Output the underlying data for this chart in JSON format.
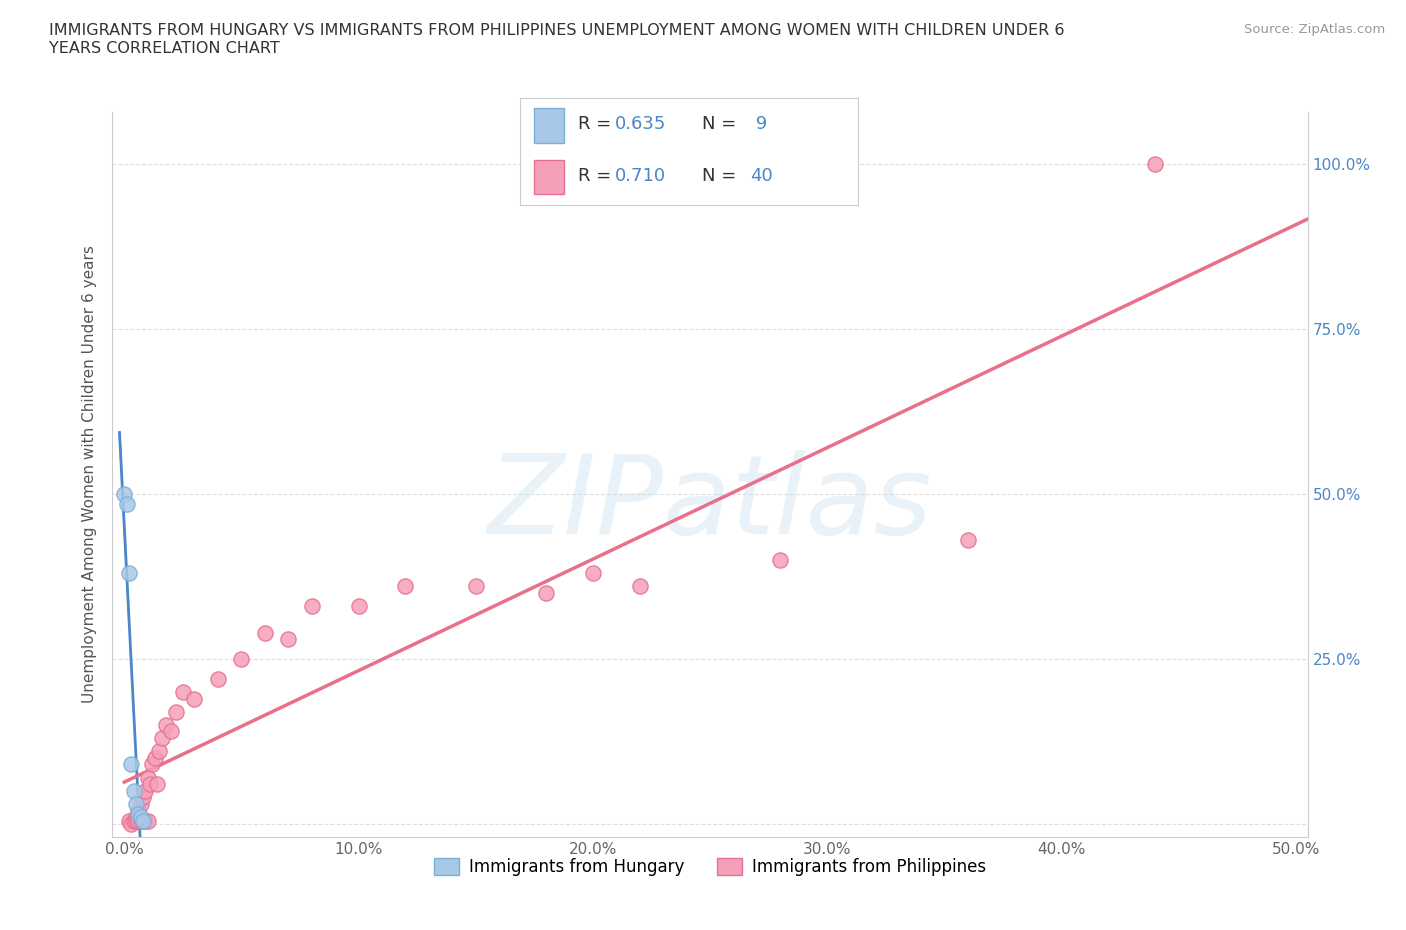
{
  "title": "IMMIGRANTS FROM HUNGARY VS IMMIGRANTS FROM PHILIPPINES UNEMPLOYMENT AMONG WOMEN WITH CHILDREN UNDER 6\nYEARS CORRELATION CHART",
  "source": "Source: ZipAtlas.com",
  "ylabel": "Unemployment Among Women with Children Under 6 years",
  "xlim": [
    -0.005,
    0.505
  ],
  "ylim": [
    -0.02,
    1.08
  ],
  "xticks": [
    0.0,
    0.1,
    0.2,
    0.3,
    0.4,
    0.5
  ],
  "xticklabels": [
    "0.0%",
    "10.0%",
    "20.0%",
    "30.0%",
    "40.0%",
    "50.0%"
  ],
  "yticks": [
    0.0,
    0.25,
    0.5,
    0.75,
    1.0
  ],
  "right_yticklabels": [
    "",
    "25.0%",
    "50.0%",
    "75.0%",
    "100.0%"
  ],
  "hungary_color": "#a8c8e8",
  "hungary_color_edge": "#7ab0d8",
  "philippines_color": "#f4a0b8",
  "philippines_color_edge": "#e87090",
  "trend_hungary_color": "#4a86c8",
  "trend_philippines_color": "#e8708a",
  "R_hungary": 0.635,
  "N_hungary": 9,
  "R_philippines": 0.71,
  "N_philippines": 40,
  "legend_label_hungary": "Immigrants from Hungary",
  "legend_label_philippines": "Immigrants from Philippines",
  "watermark": "ZIPatlas",
  "hungary_x": [
    0.0,
    0.001,
    0.002,
    0.003,
    0.004,
    0.005,
    0.006,
    0.007,
    0.008
  ],
  "hungary_y": [
    0.5,
    0.485,
    0.38,
    0.09,
    0.05,
    0.03,
    0.015,
    0.01,
    0.005
  ],
  "philippines_x": [
    0.002,
    0.003,
    0.004,
    0.005,
    0.005,
    0.006,
    0.006,
    0.007,
    0.007,
    0.008,
    0.008,
    0.009,
    0.009,
    0.01,
    0.01,
    0.011,
    0.012,
    0.013,
    0.014,
    0.015,
    0.016,
    0.018,
    0.02,
    0.022,
    0.025,
    0.03,
    0.04,
    0.05,
    0.06,
    0.07,
    0.08,
    0.1,
    0.12,
    0.15,
    0.18,
    0.2,
    0.22,
    0.28,
    0.36,
    0.44
  ],
  "philippines_y": [
    0.005,
    0.0,
    0.005,
    0.01,
    0.005,
    0.02,
    0.005,
    0.03,
    0.005,
    0.04,
    0.005,
    0.05,
    0.005,
    0.07,
    0.005,
    0.06,
    0.09,
    0.1,
    0.06,
    0.11,
    0.13,
    0.15,
    0.14,
    0.17,
    0.2,
    0.19,
    0.22,
    0.25,
    0.29,
    0.28,
    0.33,
    0.33,
    0.36,
    0.36,
    0.35,
    0.38,
    0.36,
    0.4,
    0.43,
    1.0
  ],
  "grid_color": "#d0d0d0",
  "background_color": "#ffffff",
  "fig_width": 14.06,
  "fig_height": 9.3
}
